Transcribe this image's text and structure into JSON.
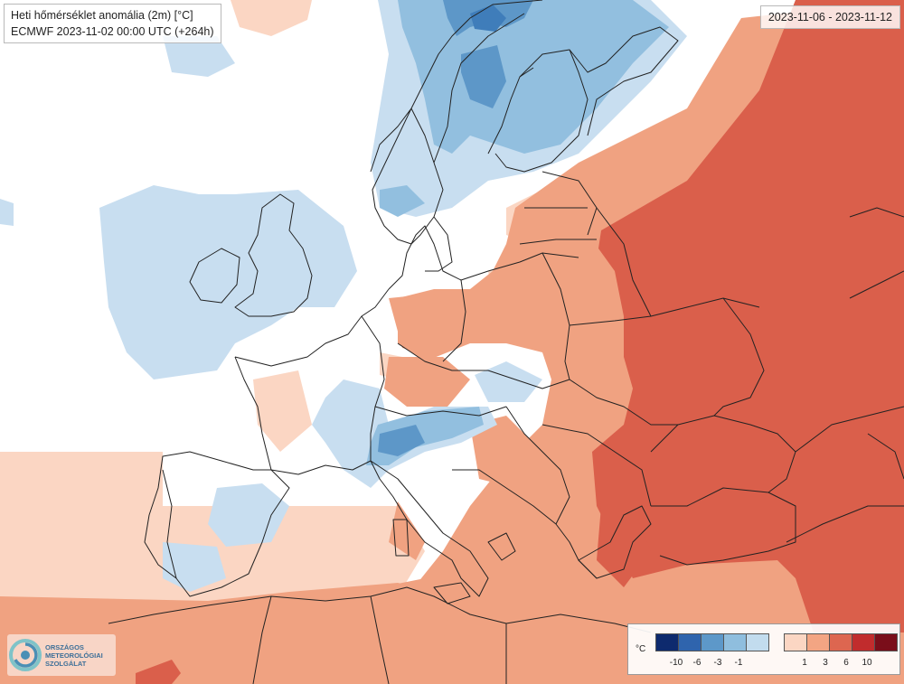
{
  "header": {
    "title": "Heti hőmérséklet anomália (2m) [°C]",
    "model_run": "ECMWF 2023-11-02 00:00 UTC (+264h)"
  },
  "period": "2023-11-06 - 2023-11-12",
  "logo": {
    "line1": "ORSZÁGOS",
    "line2": "METEOROLÓGIAI",
    "line3": "SZOLGÁLAT"
  },
  "legend": {
    "unit": "°C",
    "cold_colors": [
      "#0e2a6e",
      "#2f64ad",
      "#5d98c9",
      "#8fbede",
      "#c2dcee"
    ],
    "warm_colors": [
      "#fbd6c3",
      "#f3a583",
      "#dd6650",
      "#c12c2d",
      "#7a0e1a"
    ],
    "cold_labels": [
      "-10",
      "-6",
      "-3",
      "-1"
    ],
    "warm_labels": [
      "1",
      "3",
      "6",
      "10"
    ]
  },
  "colors": {
    "neutral": "#ffffff",
    "warm1": "#fbd6c3",
    "warm2": "#f0a281",
    "warm3": "#da5f4b",
    "cold1": "#c8def0",
    "cold2": "#92bfdf",
    "cold3": "#5d97c8",
    "cold4": "#3f7dba",
    "border": "#222222"
  }
}
